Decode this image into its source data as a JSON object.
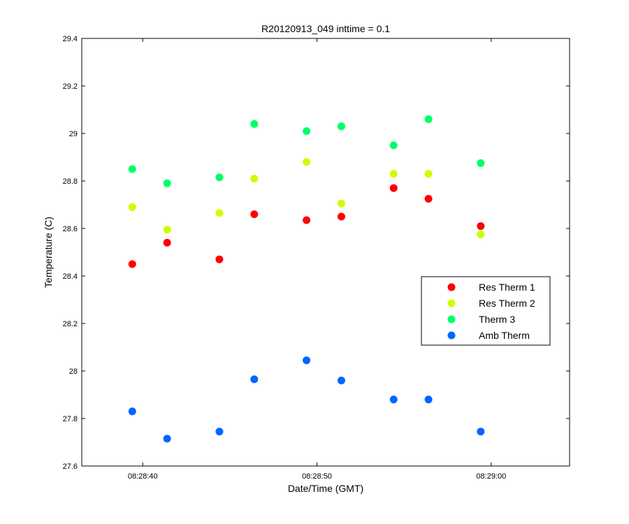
{
  "chart_data": {
    "type": "scatter",
    "title": "R20120913_049 inttime = 0.1",
    "xlabel": "Date/Time (GMT)",
    "ylabel": "Temperature (C)",
    "x_tick_labels": [
      "08:28:40",
      "08:28:50",
      "08:29:00"
    ],
    "y_tick_labels": [
      "27.6",
      "27.8",
      "28",
      "28.2",
      "28.4",
      "28.6",
      "28.8",
      "29",
      "29.2",
      "29.4"
    ],
    "ylim": [
      27.6,
      29.4
    ],
    "xlim_seconds_after_082830": [
      6.5,
      34.5
    ],
    "x_tick_seconds": [
      10,
      20,
      30
    ],
    "grid": false,
    "legend_position": "right",
    "x": [
      "08:28:39",
      "08:28:41",
      "08:28:44",
      "08:28:46",
      "08:28:49",
      "08:28:51",
      "08:28:54",
      "08:28:56",
      "08:28:59"
    ],
    "series": [
      {
        "name": "Res Therm 1",
        "color": "#ff0000",
        "values": [
          28.45,
          28.54,
          28.47,
          28.66,
          28.635,
          28.65,
          28.77,
          28.725,
          28.61
        ]
      },
      {
        "name": "Res Therm 2",
        "color": "#ccff00",
        "values": [
          28.69,
          28.595,
          28.665,
          28.81,
          28.88,
          28.705,
          28.83,
          28.83,
          28.575
        ]
      },
      {
        "name": "Therm 3",
        "color": "#00ff66",
        "values": [
          28.85,
          28.79,
          28.815,
          29.04,
          29.01,
          29.03,
          28.95,
          29.06,
          28.875
        ]
      },
      {
        "name": "Amb Therm",
        "color": "#0066ff",
        "values": [
          27.83,
          27.715,
          27.745,
          27.965,
          28.045,
          27.96,
          27.88,
          27.88,
          27.745
        ]
      }
    ]
  }
}
